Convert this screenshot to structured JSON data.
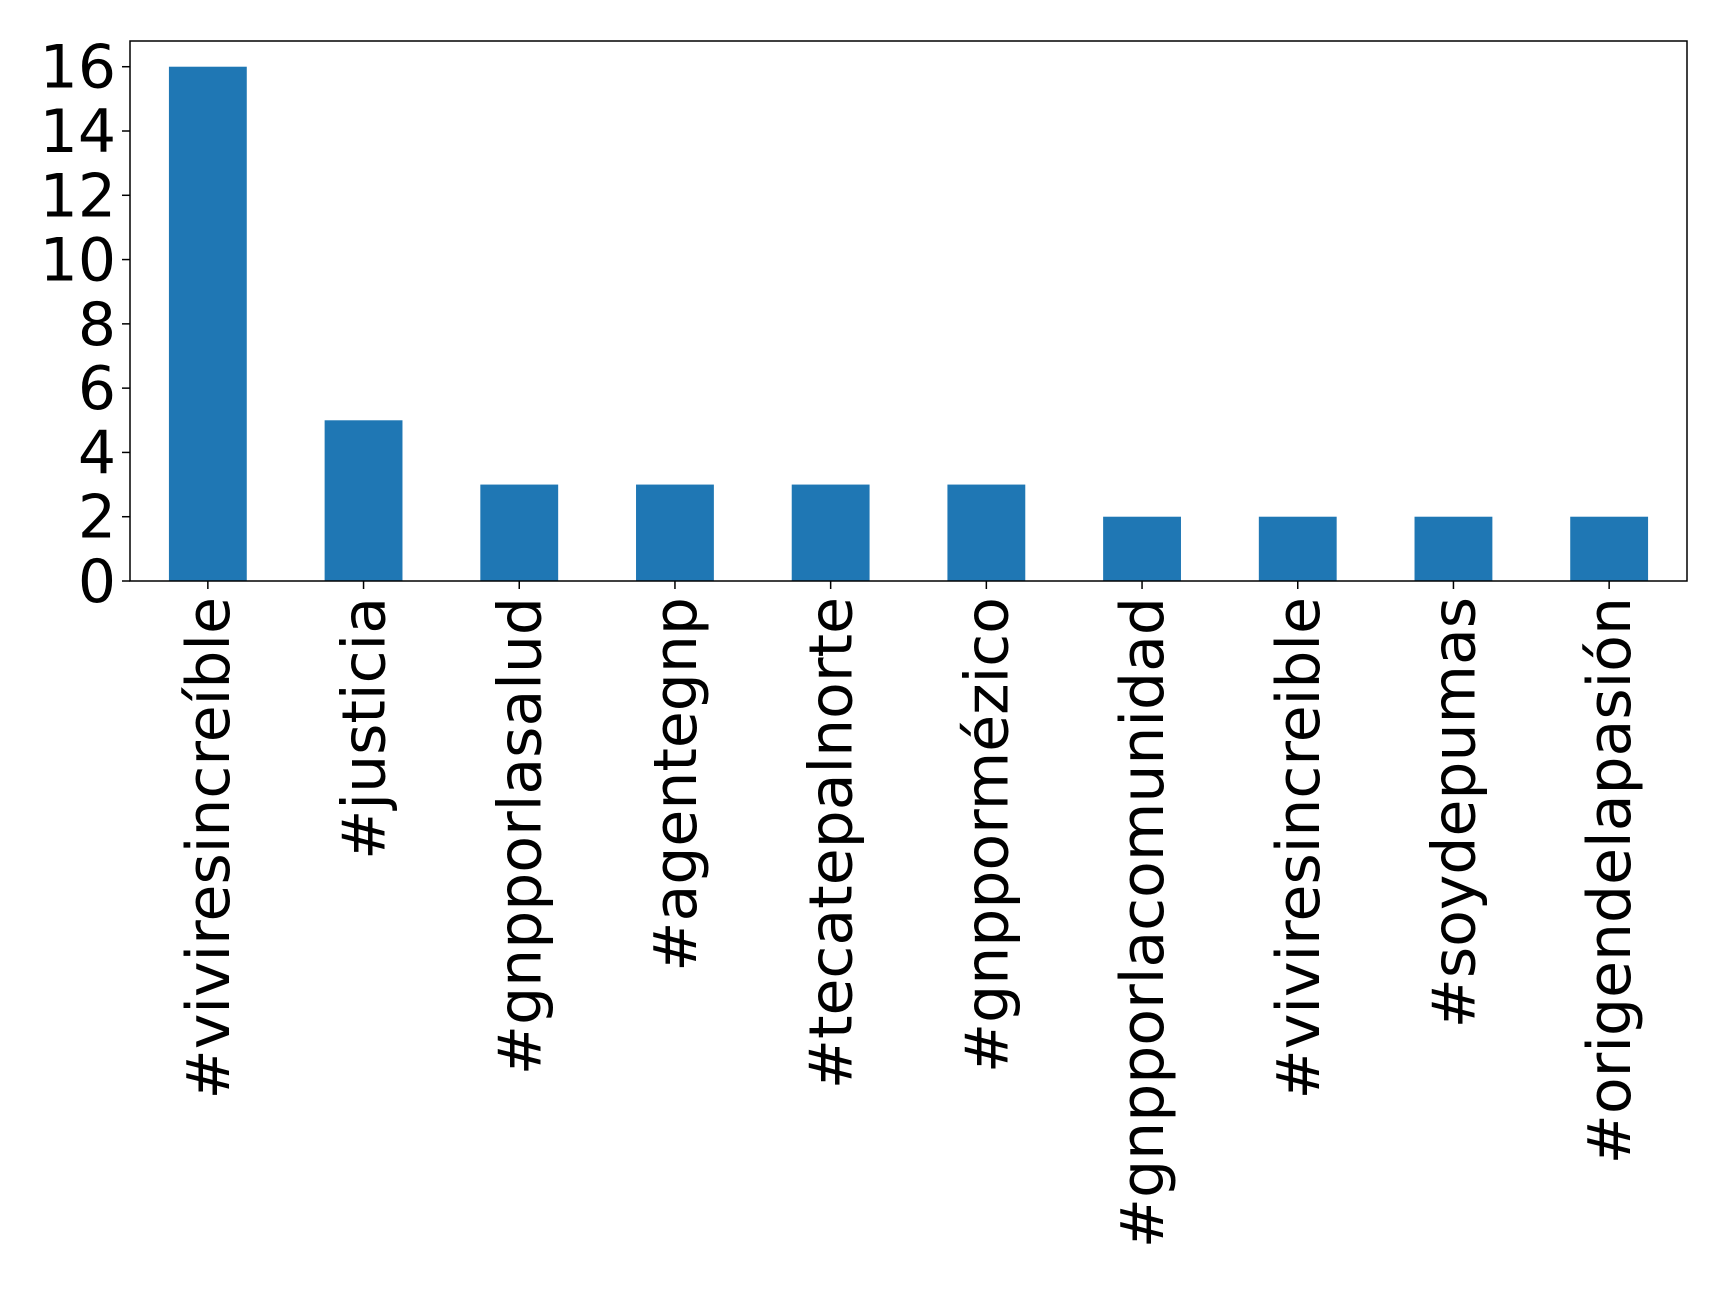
{
  "chart_data": {
    "type": "bar",
    "categories": [
      "#viviresincreíble",
      "#justicia",
      "#gnpporlasalud",
      "#agentegnp",
      "#tecatepalnorte",
      "#gnppormézico",
      "#gnpporlacomunidad",
      "#viviresincreible",
      "#soydepumas",
      "#origendelapasión"
    ],
    "values": [
      16,
      5,
      3,
      3,
      3,
      3,
      2,
      2,
      2,
      2
    ],
    "color": "#1f77b4",
    "ylim": [
      0,
      16.8
    ],
    "yticks": [
      0,
      2,
      4,
      6,
      8,
      10,
      12,
      14,
      16
    ],
    "grid": false
  }
}
